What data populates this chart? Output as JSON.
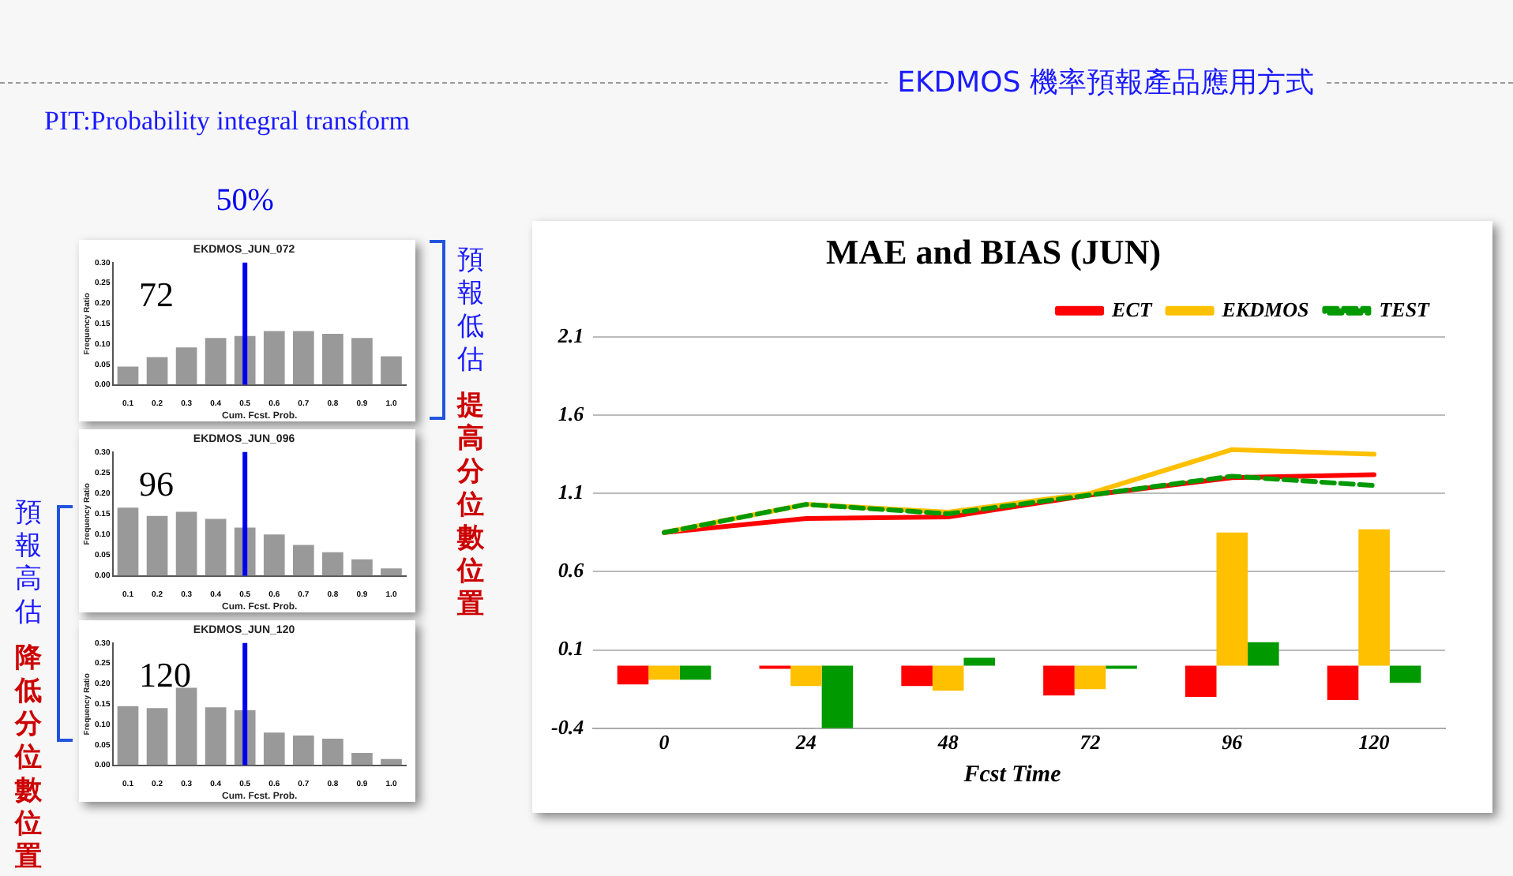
{
  "chart_data": [
    {
      "type": "bar",
      "title": "EKDMOS_JUN_072",
      "xlabel": "Cum. Fcst. Prob.",
      "ylabel": "Frequency Ratio",
      "annotations": [
        "72",
        "預報低估",
        "提高分位數位置"
      ],
      "categories": [
        "0.1",
        "0.2",
        "0.3",
        "0.4",
        "0.5",
        "0.6",
        "0.7",
        "0.8",
        "0.9",
        "1.0"
      ],
      "values": [
        0.045,
        0.068,
        0.092,
        0.115,
        0.12,
        0.132,
        0.132,
        0.125,
        0.115,
        0.07
      ],
      "color": "#999999",
      "ylim": [
        0,
        0.3
      ],
      "yticks": [
        {
          "value": 0,
          "label": "0.00"
        },
        {
          "value": 0.05,
          "label": "0.05"
        },
        {
          "value": 0.1,
          "label": "0.10"
        },
        {
          "value": 0.15,
          "label": "0.15"
        },
        {
          "value": 0.2,
          "label": "0.20"
        },
        {
          "value": 0.25,
          "label": "0.25"
        },
        {
          "value": 0.3,
          "label": "0.30"
        }
      ],
      "ref_lines": [
        {
          "axis": "x",
          "value": "0.5",
          "label": "50%",
          "color": "#0000ee"
        }
      ],
      "grid": false
    },
    {
      "type": "bar",
      "title": "EKDMOS_JUN_096",
      "xlabel": "Cum. Fcst. Prob.",
      "ylabel": "Frequency Ratio",
      "annotations": [
        "96",
        "預報高估",
        "降低分位數位置"
      ],
      "categories": [
        "0.1",
        "0.2",
        "0.3",
        "0.4",
        "0.5",
        "0.6",
        "0.7",
        "0.8",
        "0.9",
        "1.0"
      ],
      "values": [
        0.165,
        0.145,
        0.155,
        0.138,
        0.117,
        0.1,
        0.075,
        0.057,
        0.04,
        0.018
      ],
      "color": "#999999",
      "ylim": [
        0,
        0.3
      ],
      "yticks": [
        {
          "value": 0,
          "label": "0.00"
        },
        {
          "value": 0.05,
          "label": "0.05"
        },
        {
          "value": 0.1,
          "label": "0.10"
        },
        {
          "value": 0.15,
          "label": "0.15"
        },
        {
          "value": 0.2,
          "label": "0.20"
        },
        {
          "value": 0.25,
          "label": "0.25"
        },
        {
          "value": 0.3,
          "label": "0.30"
        }
      ],
      "ref_lines": [
        {
          "axis": "x",
          "value": "0.5",
          "color": "#0000ee"
        }
      ],
      "grid": false
    },
    {
      "type": "bar",
      "title": "EKDMOS_JUN_120",
      "xlabel": "Cum. Fcst. Prob.",
      "ylabel": "Frequency Ratio",
      "annotations": [
        "120"
      ],
      "categories": [
        "0.1",
        "0.2",
        "0.3",
        "0.4",
        "0.5",
        "0.6",
        "0.7",
        "0.8",
        "0.9",
        "1.0"
      ],
      "values": [
        0.145,
        0.14,
        0.19,
        0.142,
        0.135,
        0.08,
        0.073,
        0.065,
        0.03,
        0.015
      ],
      "color": "#999999",
      "ylim": [
        0,
        0.3
      ],
      "yticks": [
        {
          "value": 0,
          "label": "0.00"
        },
        {
          "value": 0.05,
          "label": "0.05"
        },
        {
          "value": 0.1,
          "label": "0.10"
        },
        {
          "value": 0.15,
          "label": "0.15"
        },
        {
          "value": 0.2,
          "label": "0.20"
        },
        {
          "value": 0.25,
          "label": "0.25"
        },
        {
          "value": 0.3,
          "label": "0.30"
        }
      ],
      "ref_lines": [
        {
          "axis": "x",
          "value": "0.5",
          "color": "#0000ee"
        }
      ],
      "grid": false
    },
    {
      "type": "bar",
      "title": "MAE and BIAS (JUN)",
      "xlabel": "Fcst Time",
      "categories": [
        "0",
        "24",
        "48",
        "72",
        "96",
        "120"
      ],
      "series": [
        {
          "type": "bar",
          "color": "#ff0000",
          "values": [
            -0.12,
            -0.02,
            -0.13,
            -0.19,
            -0.2,
            -0.22
          ]
        },
        {
          "type": "bar",
          "color": "#ffc000",
          "values": [
            -0.09,
            -0.13,
            -0.16,
            -0.15,
            0.85,
            0.87
          ]
        },
        {
          "type": "bar",
          "color": "#009900",
          "values": [
            -0.09,
            -0.4,
            0.05,
            -0.02,
            0.15,
            -0.11
          ]
        },
        {
          "type": "line",
          "name": "ECT",
          "color": "#ff0000",
          "values": [
            0.85,
            0.94,
            0.95,
            1.09,
            1.2,
            1.22
          ]
        },
        {
          "type": "line",
          "name": "EKDMOS",
          "color": "#ffc000",
          "values": [
            0.85,
            1.03,
            0.98,
            1.1,
            1.38,
            1.35
          ]
        },
        {
          "type": "line",
          "name": "TEST",
          "color": "#009900",
          "line_style": "dashed",
          "values": [
            0.85,
            1.03,
            0.97,
            1.09,
            1.21,
            1.15
          ]
        }
      ],
      "ylim": [
        -0.4,
        2.1
      ],
      "yticks": [
        -0.4,
        0.1,
        0.6,
        1.1,
        1.6,
        2.1
      ],
      "grid": "y",
      "legend": "top right"
    },
    {
      "type": "other",
      "annotations": [
        "EKDMOS 機率預報產品應用方式",
        "PIT:Probability integral transform"
      ]
    }
  ]
}
